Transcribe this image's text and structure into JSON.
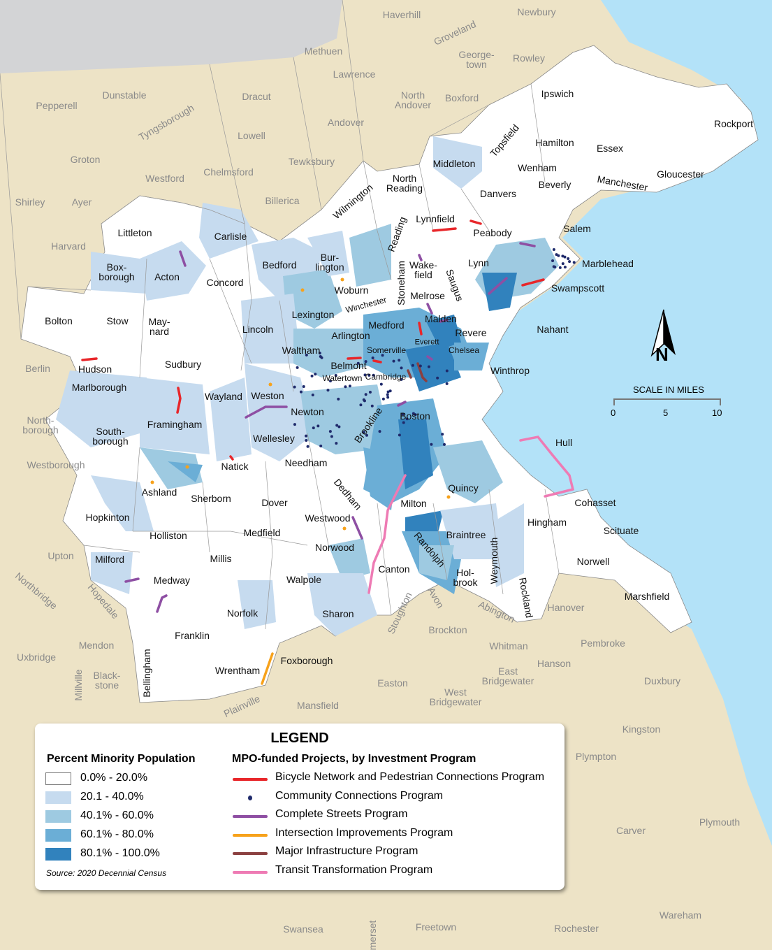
{
  "map": {
    "colors": {
      "outside_land": "#ede3c6",
      "ocean": "#b3e2f8",
      "off_map": "#d3d4d6",
      "mpo_base": "#ffffff",
      "minority_20_40": "#c6dbef",
      "minority_40_60": "#9ecae1",
      "minority_60_80": "#6baed6",
      "minority_80_100": "#3182bd"
    },
    "mpo_towns": [
      "Ipswich",
      "Rockport",
      "Topsfield",
      "Hamilton",
      "Essex",
      "Middleton",
      "Wenham",
      "Gloucester",
      "North\nReading",
      "Danvers",
      "Beverly",
      "Manchester",
      "Wilmington",
      "Lynnfield",
      "Reading",
      "Peabody",
      "Salem",
      "Littleton",
      "Carlisle",
      "Bedford",
      "Bur-\nlington",
      "Box-\nborough",
      "Acton",
      "Concord",
      "Wake-\nfield",
      "Lynn",
      "Marblehead",
      "Woburn",
      "Stoneham",
      "Saugus",
      "Swampscott",
      "Melrose",
      "Winchester",
      "Bolton",
      "Stow",
      "May-\nnard",
      "Lexington",
      "Malden",
      "Lincoln",
      "Medford",
      "Nahant",
      "Revere",
      "Arlington",
      "Everett",
      "Waltham",
      "Somerville",
      "Chelsea",
      "Sudbury",
      "Hudson",
      "Belmont",
      "Winthrop",
      "Watertown",
      "Cambridge",
      "Marlborough",
      "Wayland",
      "Weston",
      "Newton",
      "Brookline",
      "Boston",
      "Framingham",
      "South-\nborough",
      "Wellesley",
      "Hull",
      "Natick",
      "Needham",
      "Ashland",
      "Quincy",
      "Dedham",
      "Sherborn",
      "Dover",
      "Milton",
      "Cohasset",
      "Hopkinton",
      "Westwood",
      "Hingham",
      "Randolph",
      "Braintree",
      "Holliston",
      "Medfield",
      "Scituate",
      "Weymouth",
      "Norwood",
      "Milford",
      "Millis",
      "Norwell",
      "Canton",
      "Hol-\nbrook",
      "Walpole",
      "Medway",
      "Rockland",
      "Marshfield",
      "Norfolk",
      "Sharon",
      "Franklin",
      "Foxborough",
      "Wrentham",
      "Bellingham"
    ],
    "outside_towns": [
      "Haverhill",
      "Groveland",
      "Newbury",
      "Methuen",
      "Lawrence",
      "George-\ntown",
      "Rowley",
      "Dunstable",
      "Pepperell",
      "Tyngsborough",
      "Dracut",
      "North\nAndover",
      "Boxford",
      "Andover",
      "Lowell",
      "Groton",
      "Westford",
      "Chelmsford",
      "Tewksbury",
      "Billerica",
      "Shirley",
      "Ayer",
      "Harvard",
      "Berlin",
      "North-\nborough",
      "Westborough",
      "Upton",
      "Northbridge",
      "Hopedale",
      "Mendon",
      "Uxbridge",
      "Millville",
      "Black-\nstone",
      "Plainville",
      "Mansfield",
      "Easton",
      "West\nBridgewater",
      "East\nBridgewater",
      "Whitman",
      "Hanson",
      "Brockton",
      "Stoughton",
      "Avon",
      "Abington",
      "Hanover",
      "Pembroke",
      "Duxbury",
      "Kingston",
      "Plympton",
      "Carver",
      "Plymouth",
      "Wareham",
      "Rochester",
      "Freetown",
      "Swansea",
      "merset"
    ]
  },
  "north_arrow": {
    "label": "N"
  },
  "scale": {
    "title": "SCALE IN MILES",
    "ticks": [
      "0",
      "5",
      "10"
    ]
  },
  "legend": {
    "title": "LEGEND",
    "minority_heading": "Percent Minority Population",
    "minority_classes": [
      {
        "label": "0.0% - 20.0%",
        "color": "#ffffff"
      },
      {
        "label": "20.1 - 40.0%",
        "color": "#c6dbef"
      },
      {
        "label": "40.1% - 60.0%",
        "color": "#9ecae1"
      },
      {
        "label": "60.1% - 80.0%",
        "color": "#6baed6"
      },
      {
        "label": "80.1% - 100.0%",
        "color": "#3182bd"
      }
    ],
    "projects_heading": "MPO-funded Projects, by Investment Program",
    "programs": [
      {
        "label": "Bicycle Network and Pedestrian Connections Program",
        "color": "#e8262a",
        "symbol": "line"
      },
      {
        "label": "Community Connections Program",
        "color": "#1f2a6b",
        "symbol": "dot"
      },
      {
        "label": "Complete Streets Program",
        "color": "#8e4fa3",
        "symbol": "line"
      },
      {
        "label": "Intersection Improvements Program",
        "color": "#f7a21b",
        "symbol": "line"
      },
      {
        "label": "Major Infrastructure Program",
        "color": "#8b4040",
        "symbol": "line"
      },
      {
        "label": "Transit Transformation Program",
        "color": "#ee7bb4",
        "symbol": "line"
      }
    ],
    "source": "Source: 2020 Decennial Census"
  }
}
